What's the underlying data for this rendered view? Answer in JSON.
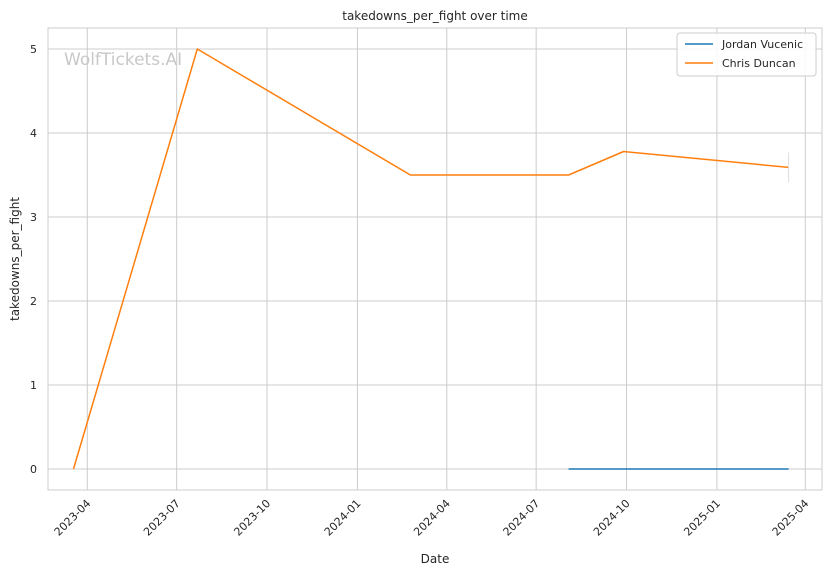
{
  "chart_data": {
    "type": "line",
    "title": "takedowns_per_fight over time",
    "xlabel": "Date",
    "ylabel": "takedowns_per_fight",
    "watermark": "WolfTickets.AI",
    "x_ticks": [
      "2023-04",
      "2023-07",
      "2023-10",
      "2024-01",
      "2024-04",
      "2024-07",
      "2024-10",
      "2025-01",
      "2025-04"
    ],
    "y_ticks": [
      0,
      1,
      2,
      3,
      4,
      5
    ],
    "ylim": [
      -0.25,
      5.25
    ],
    "xlim": [
      "2023-02-20",
      "2025-04-18"
    ],
    "grid": true,
    "legend_position": "top-right",
    "series": [
      {
        "name": "Jordan Vucenic",
        "color": "#1f77b4",
        "x": [
          "2024-08-03",
          "2025-03-15"
        ],
        "values": [
          0,
          0
        ]
      },
      {
        "name": "Chris Duncan",
        "color": "#ff7f0e",
        "x": [
          "2023-03-18",
          "2023-07-22",
          "2024-02-24",
          "2024-08-03",
          "2024-09-28",
          "2025-03-15"
        ],
        "values": [
          0,
          5,
          3.5,
          3.5,
          3.78,
          3.59
        ]
      }
    ]
  }
}
